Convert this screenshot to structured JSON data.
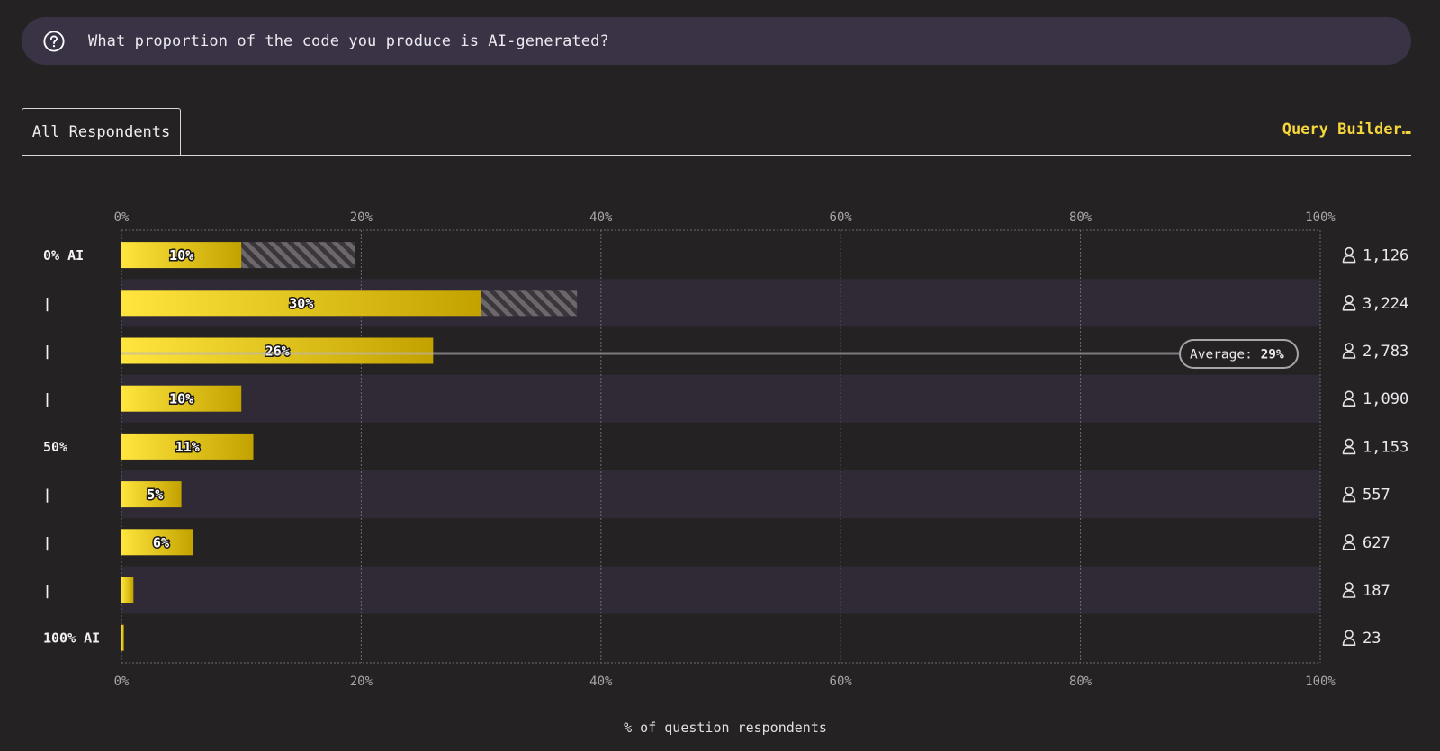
{
  "question": {
    "text": "What proportion of the code you produce is AI-generated?",
    "icon": "question-circle-icon"
  },
  "tabs": [
    {
      "label": "All Respondents",
      "active": true
    }
  ],
  "query_builder_label": "Query Builder…",
  "average": {
    "label": "Average:",
    "value": "29%"
  },
  "respondent_icon": "person-icon",
  "colors": {
    "background": "#252224",
    "row_alt": "#2f2a36",
    "bar_light": "#ffe53d",
    "bar_dark": "#c3a200",
    "hatch_gray": "#6b676c",
    "hatch_gold": "#e0c94a",
    "accent": "#f5d63c"
  },
  "chart_data": {
    "type": "bar",
    "orientation": "horizontal",
    "categories": [
      "0% AI",
      "|",
      "|",
      "|",
      "50%",
      "|",
      "|",
      "|",
      "100% AI"
    ],
    "values": [
      10,
      30,
      26,
      10,
      11,
      5,
      6,
      1,
      0.2
    ],
    "value_labels": [
      "10%",
      "30%",
      "26%",
      "10%",
      "11%",
      "5%",
      "6%",
      "",
      ""
    ],
    "cumulative": [
      19.5,
      38,
      26,
      10,
      11,
      5,
      6,
      1,
      0.2
    ],
    "respondents": [
      "1,126",
      "3,224",
      "2,783",
      "1,090",
      "1,153",
      "557",
      "627",
      "187",
      "23"
    ],
    "xlim": [
      0,
      100
    ],
    "xticks": [
      "0%",
      "20%",
      "40%",
      "60%",
      "80%",
      "100%"
    ],
    "xlabel": "% of question respondents",
    "average": 29,
    "grid": true
  }
}
